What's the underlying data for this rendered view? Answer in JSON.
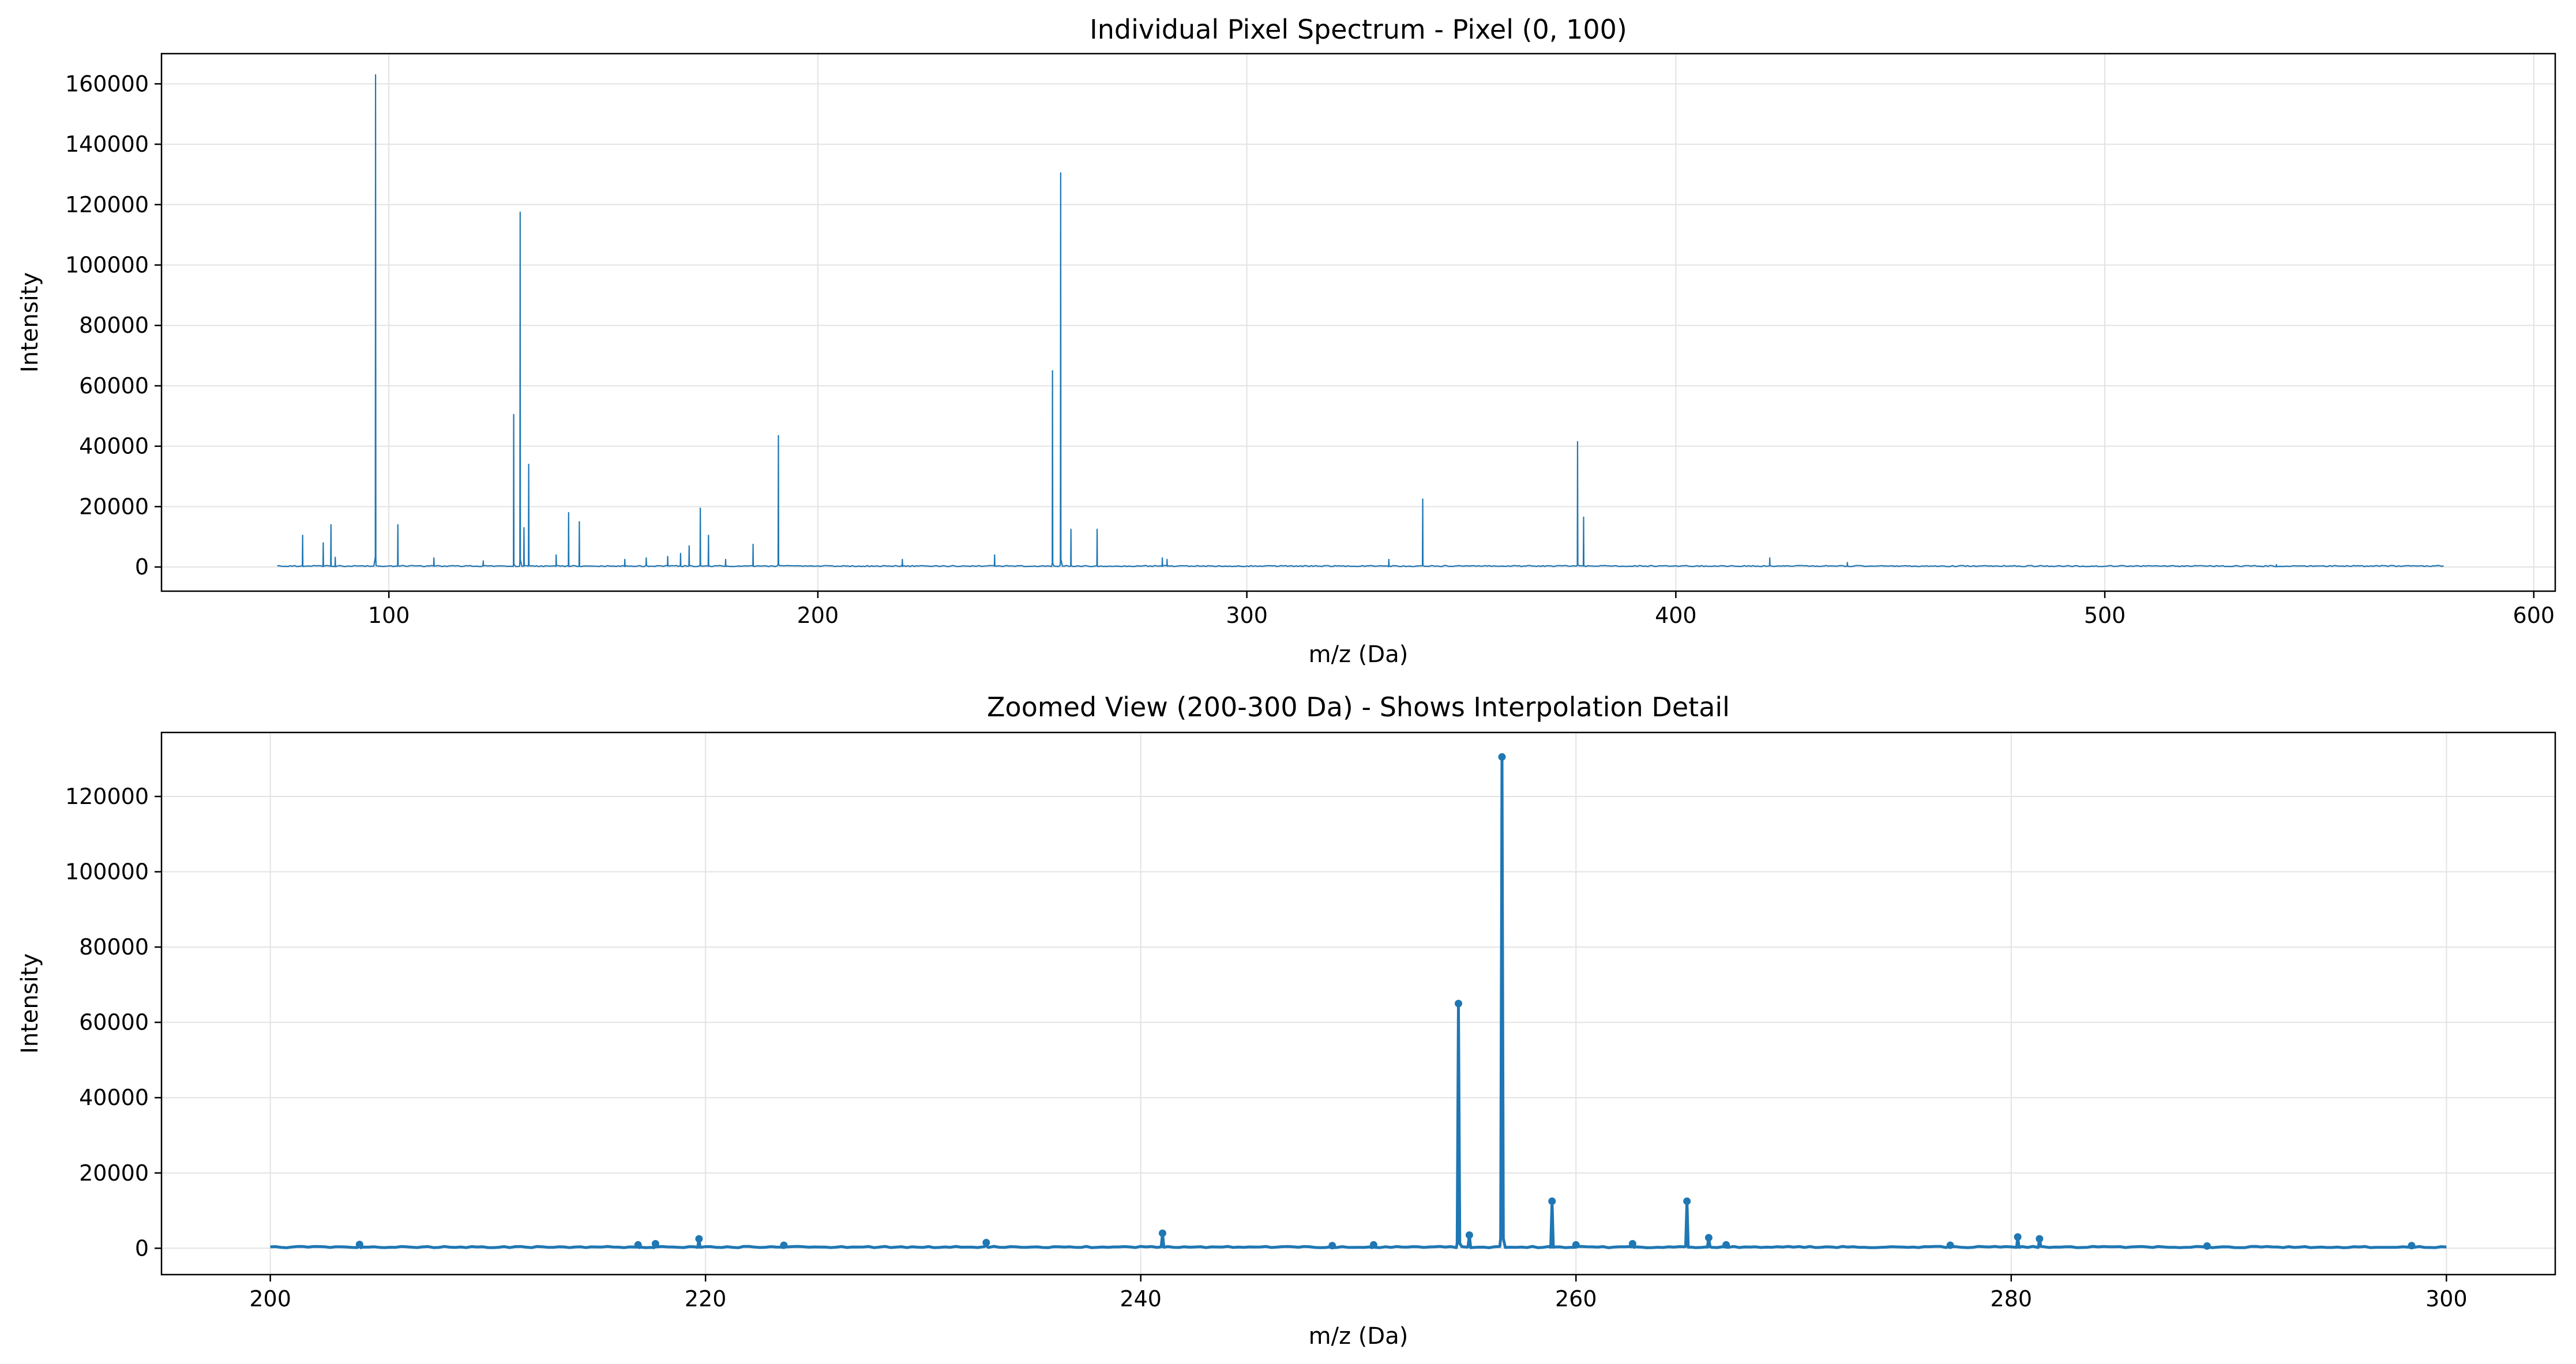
{
  "chart_data": [
    {
      "type": "line",
      "title": "Individual Pixel Spectrum - Pixel (0, 100)",
      "xlabel": "m/z (Da)",
      "ylabel": "Intensity",
      "xlim": [
        47,
        605
      ],
      "ylim": [
        -8000,
        170000
      ],
      "xticks": [
        100,
        200,
        300,
        400,
        500,
        600
      ],
      "yticks": [
        0,
        20000,
        40000,
        60000,
        80000,
        100000,
        120000,
        140000,
        160000
      ],
      "grid": true,
      "color": "#1f77b4",
      "markers": false,
      "series": [
        {
          "x_range": [
            74,
            579
          ],
          "baseline": 400,
          "peaks": [
            [
              79.9,
              10500
            ],
            [
              84.7,
              8000
            ],
            [
              86.5,
              14000
            ],
            [
              87.5,
              3200
            ],
            [
              96.9,
              163000
            ],
            [
              102.1,
              14000
            ],
            [
              110.5,
              3000
            ],
            [
              122,
              2000
            ],
            [
              129.1,
              50500
            ],
            [
              130.6,
              117500
            ],
            [
              131.5,
              13000
            ],
            [
              132.6,
              34000
            ],
            [
              139,
              4000
            ],
            [
              141.9,
              18000
            ],
            [
              144.4,
              15000
            ],
            [
              155,
              2500
            ],
            [
              160,
              3000
            ],
            [
              165,
              3500
            ],
            [
              168,
              4500
            ],
            [
              170,
              7000
            ],
            [
              172.6,
              19500
            ],
            [
              174.5,
              10500
            ],
            [
              178.5,
              2500
            ],
            [
              184.9,
              7500
            ],
            [
              190.8,
              43500
            ],
            [
              219.7,
              2500
            ],
            [
              241.2,
              4000
            ],
            [
              254.7,
              65000
            ],
            [
              256.6,
              130500
            ],
            [
              259,
              12500
            ],
            [
              265.1,
              12500
            ],
            [
              280.3,
              3000
            ],
            [
              281.4,
              2500
            ],
            [
              333.1,
              2500
            ],
            [
              341,
              22500
            ],
            [
              377.1,
              41500
            ],
            [
              378.5,
              16500
            ],
            [
              421.9,
              3000
            ],
            [
              440,
              1500
            ],
            [
              540,
              800
            ]
          ]
        }
      ]
    },
    {
      "type": "line",
      "title": "Zoomed View (200-300 Da) - Shows Interpolation Detail",
      "xlabel": "m/z (Da)",
      "ylabel": "Intensity",
      "xlim": [
        195,
        305
      ],
      "ylim": [
        -7000,
        137000
      ],
      "xticks": [
        200,
        220,
        240,
        260,
        280,
        300
      ],
      "yticks": [
        0,
        20000,
        40000,
        60000,
        80000,
        100000,
        120000
      ],
      "grid": true,
      "color": "#1f77b4",
      "markers": true,
      "series": [
        {
          "x_range": [
            200,
            300
          ],
          "baseline": 400,
          "peaks": [
            [
              204.1,
              1000
            ],
            [
              216.9,
              900
            ],
            [
              217.7,
              1200
            ],
            [
              219.7,
              2500
            ],
            [
              223.6,
              800
            ],
            [
              232.9,
              1500
            ],
            [
              241,
              4000
            ],
            [
              248.8,
              700
            ],
            [
              250.7,
              900
            ],
            [
              254.6,
              65000
            ],
            [
              255.1,
              3500
            ],
            [
              256.6,
              130500
            ],
            [
              258.9,
              12500
            ],
            [
              260,
              900
            ],
            [
              262.6,
              1200
            ],
            [
              265.1,
              12500
            ],
            [
              266.1,
              2800
            ],
            [
              266.9,
              900
            ],
            [
              277.2,
              800
            ],
            [
              280.3,
              3000
            ],
            [
              281.3,
              2500
            ],
            [
              289,
              600
            ],
            [
              298.4,
              700
            ]
          ]
        }
      ]
    }
  ]
}
